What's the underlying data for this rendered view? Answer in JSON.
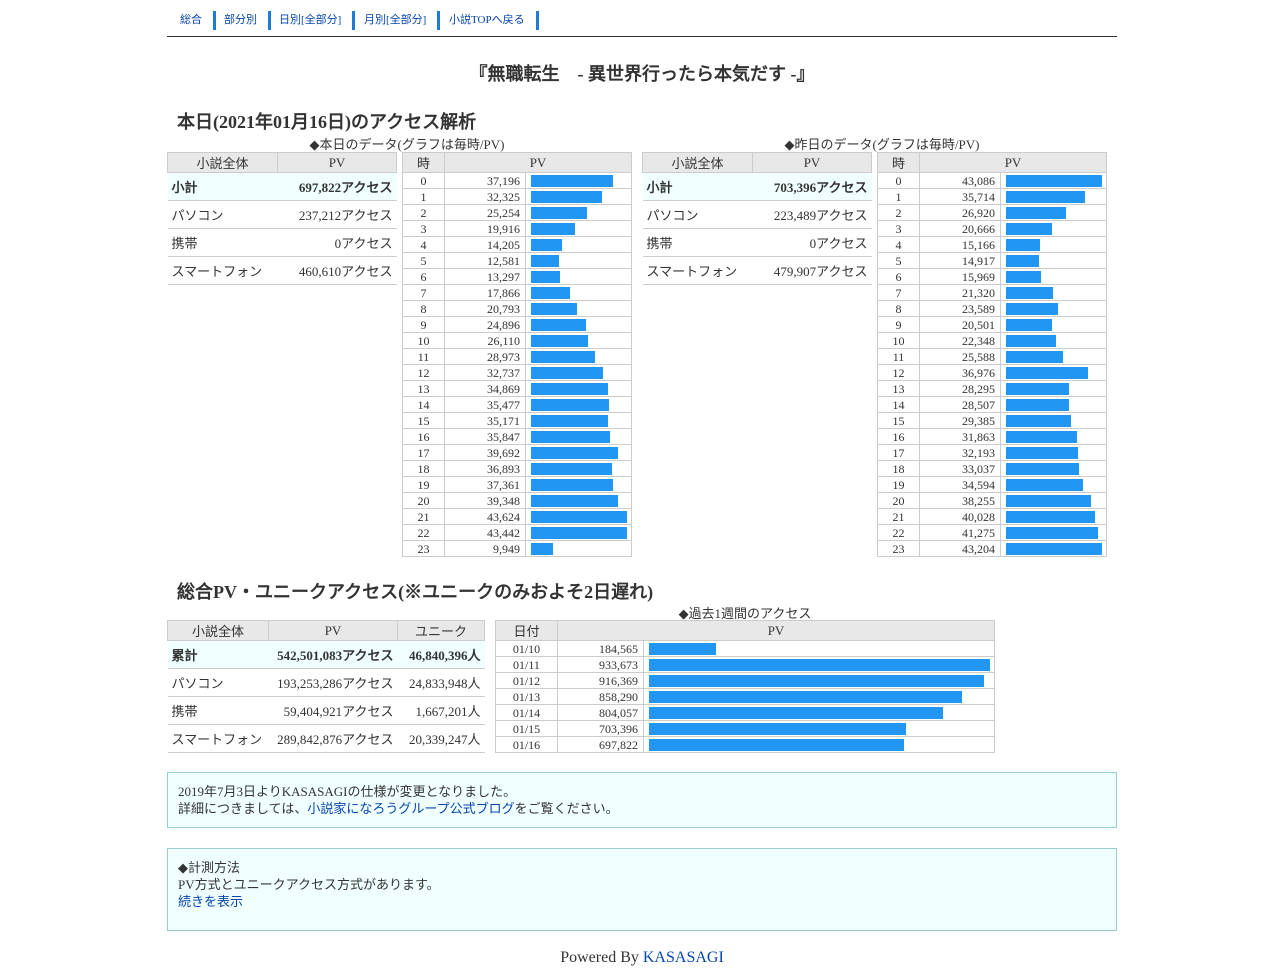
{
  "nav": {
    "items": [
      "総合",
      "部分別",
      "日別[全部分]",
      "月別[全部分]",
      "小説TOPへ戻る"
    ]
  },
  "novel_title": "『無職転生　- 異世界行ったら本気だす -』",
  "today_section": {
    "heading": "本日(2021年01月16日)のアクセス解析",
    "today_caption": "◆本日のデータ(グラフは毎時/PV)",
    "yesterday_caption": "◆昨日のデータ(グラフは毎時/PV)",
    "col_novel": "小説全体",
    "col_pv": "PV",
    "col_hour": "時",
    "today_summary": [
      {
        "label": "小計",
        "value": "697,822アクセス"
      },
      {
        "label": "パソコン",
        "value": "237,212アクセス"
      },
      {
        "label": "携帯",
        "value": "0アクセス"
      },
      {
        "label": "スマートフォン",
        "value": "460,610アクセス"
      }
    ],
    "yesterday_summary": [
      {
        "label": "小計",
        "value": "703,396アクセス"
      },
      {
        "label": "パソコン",
        "value": "223,489アクセス"
      },
      {
        "label": "携帯",
        "value": "0アクセス"
      },
      {
        "label": "スマートフォン",
        "value": "479,907アクセス"
      }
    ]
  },
  "chart_data": [
    {
      "type": "bar",
      "title": "◆本日のデータ(グラフは毎時/PV)",
      "xlabel": "時",
      "ylabel": "PV",
      "categories": [
        "0",
        "1",
        "2",
        "3",
        "4",
        "5",
        "6",
        "7",
        "8",
        "9",
        "10",
        "11",
        "12",
        "13",
        "14",
        "15",
        "16",
        "17",
        "18",
        "19",
        "20",
        "21",
        "22",
        "23"
      ],
      "values": [
        37196,
        32325,
        25254,
        19916,
        14205,
        12581,
        13297,
        17866,
        20793,
        24896,
        26110,
        28973,
        32737,
        34869,
        35477,
        35171,
        35847,
        39692,
        36893,
        37361,
        39348,
        43624,
        43442,
        9949
      ],
      "labels": [
        "37,196",
        "32,325",
        "25,254",
        "19,916",
        "14,205",
        "12,581",
        "13,297",
        "17,866",
        "20,793",
        "24,896",
        "26,110",
        "28,973",
        "32,737",
        "34,869",
        "35,477",
        "35,171",
        "35,847",
        "39,692",
        "36,893",
        "37,361",
        "39,348",
        "43,624",
        "43,442",
        "9,949"
      ]
    },
    {
      "type": "bar",
      "title": "◆昨日のデータ(グラフは毎時/PV)",
      "xlabel": "時",
      "ylabel": "PV",
      "categories": [
        "0",
        "1",
        "2",
        "3",
        "4",
        "5",
        "6",
        "7",
        "8",
        "9",
        "10",
        "11",
        "12",
        "13",
        "14",
        "15",
        "16",
        "17",
        "18",
        "19",
        "20",
        "21",
        "22",
        "23"
      ],
      "values": [
        43086,
        35714,
        26920,
        20666,
        15166,
        14917,
        15969,
        21320,
        23589,
        20501,
        22348,
        25588,
        36976,
        28295,
        28507,
        29385,
        31863,
        32193,
        33037,
        34594,
        38255,
        40028,
        41275,
        43204
      ],
      "labels": [
        "43,086",
        "35,714",
        "26,920",
        "20,666",
        "15,166",
        "14,917",
        "15,969",
        "21,320",
        "23,589",
        "20,501",
        "22,348",
        "25,588",
        "36,976",
        "28,295",
        "28,507",
        "29,385",
        "31,863",
        "32,193",
        "33,037",
        "34,594",
        "38,255",
        "40,028",
        "41,275",
        "43,204"
      ]
    },
    {
      "type": "bar",
      "title": "◆過去1週間のアクセス",
      "xlabel": "日付",
      "ylabel": "PV",
      "categories": [
        "01/10",
        "01/11",
        "01/12",
        "01/13",
        "01/14",
        "01/15",
        "01/16"
      ],
      "values": [
        184565,
        933673,
        916369,
        858290,
        804057,
        703396,
        697822
      ],
      "labels": [
        "184,565",
        "933,673",
        "916,369",
        "858,290",
        "804,057",
        "703,396",
        "697,822"
      ]
    }
  ],
  "total_section": {
    "heading": "総合PV・ユニークアクセス(※ユニークのみおよそ2日遅れ)",
    "week_caption": "◆過去1週間のアクセス",
    "col_novel": "小説全体",
    "col_pv": "PV",
    "col_unique": "ユニーク",
    "col_date": "日付",
    "rows": [
      {
        "label": "累計",
        "pv": "542,501,083アクセス",
        "unique": "46,840,396人"
      },
      {
        "label": "パソコン",
        "pv": "193,253,286アクセス",
        "unique": "24,833,948人"
      },
      {
        "label": "携帯",
        "pv": "59,404,921アクセス",
        "unique": "1,667,201人"
      },
      {
        "label": "スマートフォン",
        "pv": "289,842,876アクセス",
        "unique": "20,339,247人"
      }
    ]
  },
  "notice1": {
    "line1": "2019年7月3日よりKASASAGIの仕様が変更となりました。",
    "line2_prefix": "詳細につきましては、",
    "line2_link": "小説家になろうグループ公式ブログ",
    "line2_suffix": "をご覧ください。"
  },
  "notice2": {
    "title": "◆計測方法",
    "text": "PV方式とユニークアクセス方式があります。",
    "link": "続きを表示"
  },
  "footer": {
    "prefix": "Powered By ",
    "link": "KASASAGI"
  },
  "colors": {
    "bar": "#2196f3",
    "highlight_row": "#f0ffff",
    "link": "#0645ad",
    "nav_separator": "#1e7ad4"
  }
}
